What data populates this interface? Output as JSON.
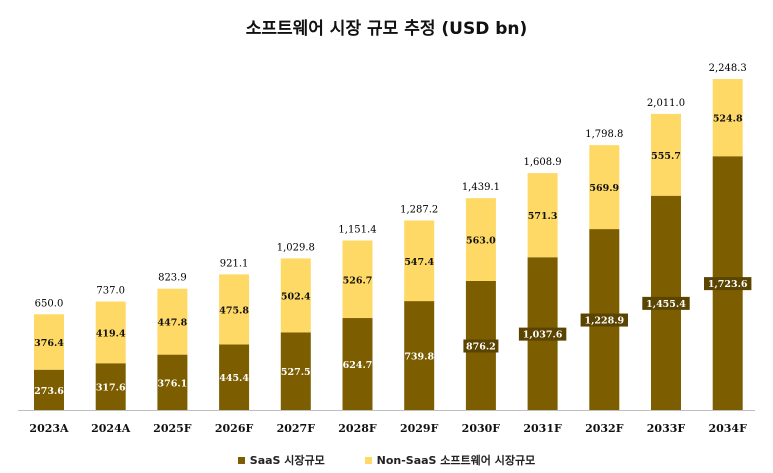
{
  "colors": {
    "saas": "#7c5e00",
    "non_saas": "#ffd966",
    "axis": "#bfbfbf"
  },
  "chart_data": {
    "type": "bar",
    "stacked": true,
    "title": "소프트웨어 시장 규모 추정 (USD bn)",
    "categories": [
      "2023A",
      "2024A",
      "2025F",
      "2026F",
      "2027F",
      "2028F",
      "2029F",
      "2030F",
      "2031F",
      "2032F",
      "2033F",
      "2034F"
    ],
    "series": [
      {
        "name": "SaaS 시장규모",
        "values": [
          273.6,
          317.6,
          376.1,
          445.4,
          527.5,
          624.7,
          739.8,
          876.2,
          1037.6,
          1228.9,
          1455.4,
          1723.6
        ],
        "labels": [
          "273.6",
          "317.6",
          "376.1",
          "445.4",
          "527.5",
          "624.7",
          "739.8",
          "876.2",
          "1,037.6",
          "1,228.9",
          "1,455.4",
          "1,723.6"
        ]
      },
      {
        "name": "Non-SaaS 소프트웨어 시장규모",
        "values": [
          376.4,
          419.4,
          447.8,
          475.8,
          502.4,
          526.7,
          547.4,
          563.0,
          571.3,
          569.9,
          555.7,
          524.8
        ],
        "labels": [
          "376.4",
          "419.4",
          "447.8",
          "475.8",
          "502.4",
          "526.7",
          "547.4",
          "563.0",
          "571.3",
          "569.9",
          "555.7",
          "524.8"
        ]
      }
    ],
    "totals": [
      650.0,
      737.0,
      823.9,
      921.1,
      1029.8,
      1151.4,
      1287.2,
      1439.1,
      1608.9,
      1798.8,
      2011.0,
      2248.3
    ],
    "total_labels": [
      "650.0",
      "737.0",
      "823.9",
      "921.1",
      "1,029.8",
      "1,151.4",
      "1,287.2",
      "1,439.1",
      "1,608.9",
      "1,798.8",
      "2,011.0",
      "2,248.3"
    ],
    "ylim": [
      0,
      2500
    ],
    "grid": false,
    "legend_position": "bottom"
  }
}
